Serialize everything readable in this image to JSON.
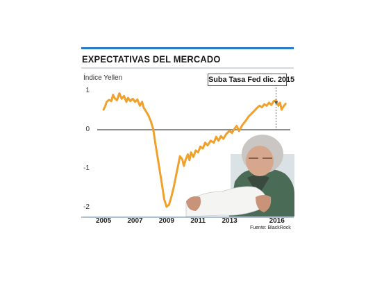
{
  "chart_data": {
    "type": "line",
    "title": "EXPECTATIVAS DEL MERCADO",
    "ylabel": "Índice Yellen",
    "ylim": [
      -2,
      1
    ],
    "yticks": [
      1,
      0,
      -1,
      -2
    ],
    "yticklabels": [
      "1",
      "0",
      "-1",
      "-2"
    ],
    "xticks": [
      2005,
      2007,
      2009,
      2011,
      2013,
      2016
    ],
    "xticklabels": [
      "2005",
      "2007",
      "2009",
      "2011",
      "2013",
      "2016"
    ],
    "xlim": [
      2004.6,
      2016.85
    ],
    "grid": false,
    "annotation": {
      "text": "Suba Tasa Fed dic. 2015",
      "x": 2015.95
    },
    "source": "Fuente: BlackRock",
    "series": [
      {
        "color": "#f0a12b",
        "points": [
          [
            2005.0,
            0.5
          ],
          [
            2005.1,
            0.58
          ],
          [
            2005.2,
            0.7
          ],
          [
            2005.35,
            0.75
          ],
          [
            2005.5,
            0.72
          ],
          [
            2005.6,
            0.88
          ],
          [
            2005.7,
            0.8
          ],
          [
            2005.85,
            0.74
          ],
          [
            2006.0,
            0.92
          ],
          [
            2006.15,
            0.78
          ],
          [
            2006.3,
            0.85
          ],
          [
            2006.45,
            0.7
          ],
          [
            2006.55,
            0.8
          ],
          [
            2006.7,
            0.72
          ],
          [
            2006.85,
            0.78
          ],
          [
            2007.0,
            0.7
          ],
          [
            2007.15,
            0.76
          ],
          [
            2007.3,
            0.6
          ],
          [
            2007.45,
            0.7
          ],
          [
            2007.55,
            0.55
          ],
          [
            2007.7,
            0.45
          ],
          [
            2007.85,
            0.35
          ],
          [
            2008.0,
            0.2
          ],
          [
            2008.15,
            0.0
          ],
          [
            2008.3,
            -0.4
          ],
          [
            2008.5,
            -0.9
          ],
          [
            2008.7,
            -1.4
          ],
          [
            2008.85,
            -1.8
          ],
          [
            2009.0,
            -2.0
          ],
          [
            2009.15,
            -1.95
          ],
          [
            2009.3,
            -1.75
          ],
          [
            2009.45,
            -1.5
          ],
          [
            2009.6,
            -1.2
          ],
          [
            2009.75,
            -0.9
          ],
          [
            2009.85,
            -0.7
          ],
          [
            2010.0,
            -0.78
          ],
          [
            2010.1,
            -0.95
          ],
          [
            2010.2,
            -0.8
          ],
          [
            2010.35,
            -0.65
          ],
          [
            2010.45,
            -0.8
          ],
          [
            2010.55,
            -0.6
          ],
          [
            2010.7,
            -0.72
          ],
          [
            2010.85,
            -0.55
          ],
          [
            2011.0,
            -0.6
          ],
          [
            2011.15,
            -0.45
          ],
          [
            2011.3,
            -0.5
          ],
          [
            2011.45,
            -0.35
          ],
          [
            2011.6,
            -0.42
          ],
          [
            2011.8,
            -0.3
          ],
          [
            2012.0,
            -0.35
          ],
          [
            2012.15,
            -0.2
          ],
          [
            2012.3,
            -0.3
          ],
          [
            2012.45,
            -0.18
          ],
          [
            2012.6,
            -0.25
          ],
          [
            2012.8,
            -0.12
          ],
          [
            2013.0,
            -0.05
          ],
          [
            2013.15,
            -0.1
          ],
          [
            2013.3,
            0.0
          ],
          [
            2013.45,
            0.08
          ],
          [
            2013.6,
            -0.05
          ],
          [
            2013.8,
            0.1
          ],
          [
            2014.0,
            0.2
          ],
          [
            2014.2,
            0.32
          ],
          [
            2014.4,
            0.4
          ],
          [
            2014.6,
            0.48
          ],
          [
            2014.75,
            0.55
          ],
          [
            2014.9,
            0.6
          ],
          [
            2015.05,
            0.56
          ],
          [
            2015.2,
            0.64
          ],
          [
            2015.35,
            0.6
          ],
          [
            2015.5,
            0.68
          ],
          [
            2015.65,
            0.62
          ],
          [
            2015.8,
            0.72
          ],
          [
            2015.95,
            0.74
          ],
          [
            2016.1,
            0.6
          ],
          [
            2016.2,
            0.68
          ],
          [
            2016.3,
            0.5
          ],
          [
            2016.45,
            0.6
          ],
          [
            2016.55,
            0.65
          ]
        ]
      }
    ]
  }
}
